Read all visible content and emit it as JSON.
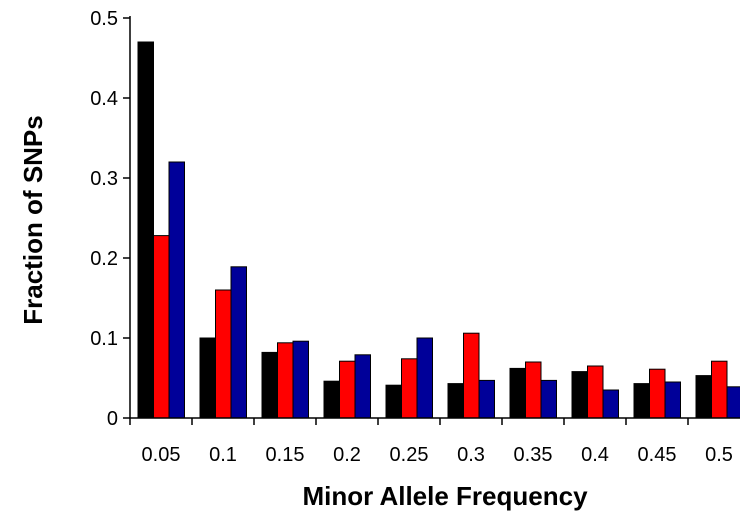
{
  "chart_data": {
    "type": "bar",
    "title": "",
    "xlabel": "Minor Allele Frequency",
    "ylabel": "Fraction of SNPs",
    "categories": [
      "0.05",
      "0.1",
      "0.15",
      "0.2",
      "0.25",
      "0.3",
      "0.35",
      "0.4",
      "0.45",
      "0.5"
    ],
    "series": [
      {
        "color": "#000000",
        "values": [
          0.47,
          0.1,
          0.082,
          0.046,
          0.041,
          0.043,
          0.062,
          0.058,
          0.043,
          0.053
        ]
      },
      {
        "color": "#ff0000",
        "values": [
          0.228,
          0.16,
          0.094,
          0.071,
          0.074,
          0.106,
          0.07,
          0.065,
          0.061,
          0.071
        ]
      },
      {
        "color": "#000099",
        "values": [
          0.32,
          0.189,
          0.096,
          0.079,
          0.1,
          0.047,
          0.047,
          0.035,
          0.045,
          0.039
        ]
      }
    ],
    "ylim": [
      0,
      0.5
    ],
    "yticks": [
      "0",
      "0.1",
      "0.2",
      "0.3",
      "0.4",
      "0.5"
    ],
    "grid": false,
    "legend": "none"
  }
}
